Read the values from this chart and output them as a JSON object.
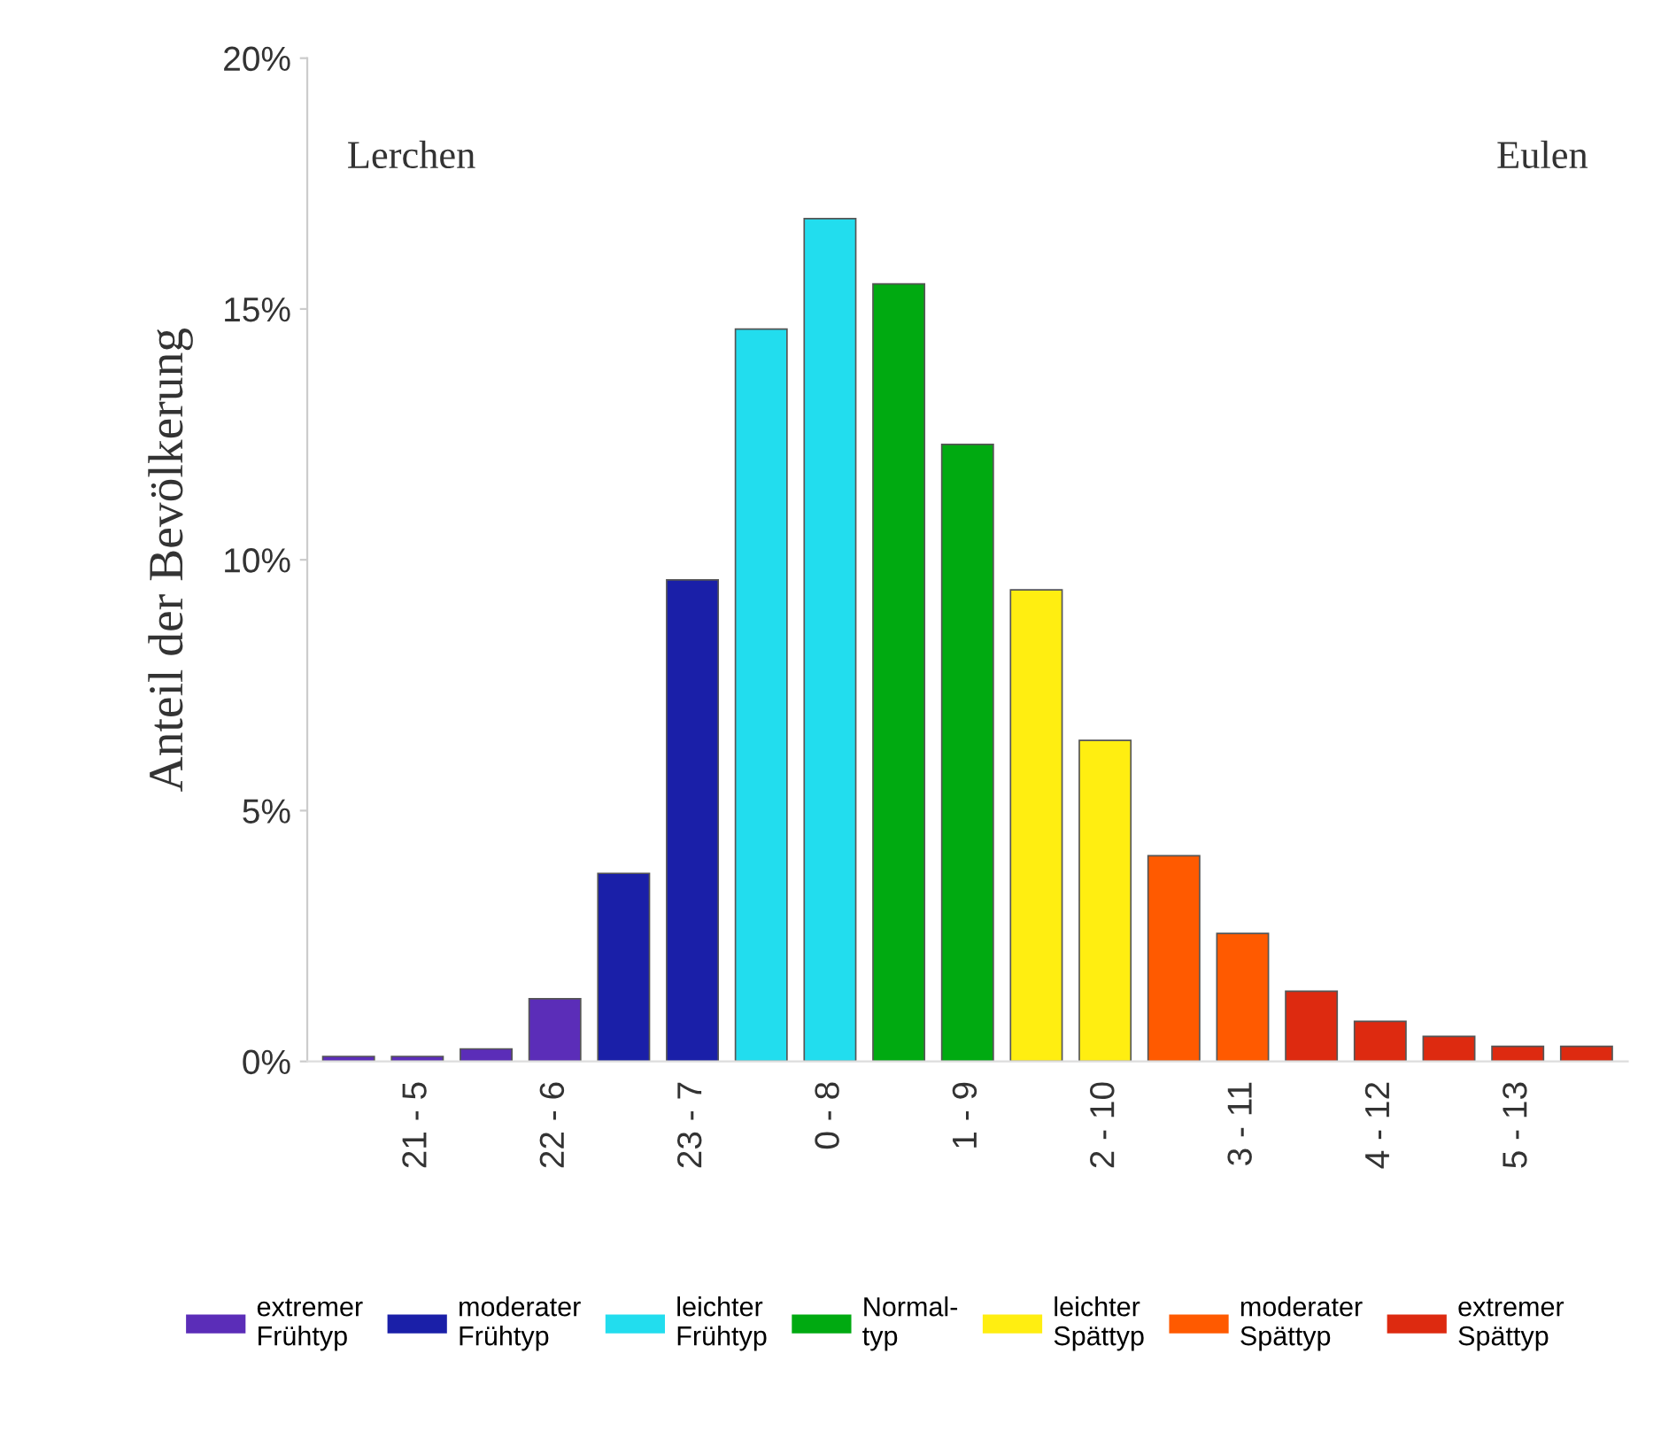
{
  "chart_data": {
    "type": "bar",
    "ylabel": "Anteil der Bevölkerung",
    "categories": [
      null,
      "21 - 5",
      null,
      "22 - 6",
      null,
      "23 - 7",
      null,
      "0 - 8",
      null,
      "1 - 9",
      null,
      "2 - 10",
      null,
      "3 - 11",
      null,
      "4 - 12",
      null,
      "5 - 13",
      null
    ],
    "series": [
      {
        "name": "extremer Frühtyp",
        "color": "#5b2db8",
        "values": [
          0.1,
          0.1,
          0.25,
          1.25,
          null,
          null,
          null,
          null,
          null,
          null,
          null,
          null,
          null,
          null,
          null,
          null,
          null,
          null,
          null
        ]
      },
      {
        "name": "moderater Frühtyp",
        "color": "#1a1fa8",
        "values": [
          null,
          null,
          null,
          null,
          3.75,
          9.6,
          null,
          null,
          null,
          null,
          null,
          null,
          null,
          null,
          null,
          null,
          null,
          null,
          null
        ]
      },
      {
        "name": "leichter Frühtyp",
        "color": "#22ddee",
        "values": [
          null,
          null,
          null,
          null,
          null,
          null,
          14.6,
          16.8,
          null,
          null,
          null,
          null,
          null,
          null,
          null,
          null,
          null,
          null,
          null
        ]
      },
      {
        "name": "Normal-typ",
        "color": "#00aa11",
        "values": [
          null,
          null,
          null,
          null,
          null,
          null,
          null,
          null,
          15.5,
          12.3,
          null,
          null,
          null,
          null,
          null,
          null,
          null,
          null,
          null
        ]
      },
      {
        "name": "leichter Spättyp",
        "color": "#ffee11",
        "values": [
          null,
          null,
          null,
          null,
          null,
          null,
          null,
          null,
          null,
          null,
          9.4,
          6.4,
          null,
          null,
          null,
          null,
          null,
          null,
          null
        ]
      },
      {
        "name": "moderater Spättyp",
        "color": "#ff5a00",
        "values": [
          null,
          null,
          null,
          null,
          null,
          null,
          null,
          null,
          null,
          null,
          null,
          null,
          4.1,
          2.55,
          null,
          null,
          null,
          null,
          null
        ]
      },
      {
        "name": "extremer Spättyp",
        "color": "#dd2a10",
        "values": [
          null,
          null,
          null,
          null,
          null,
          null,
          null,
          null,
          null,
          null,
          null,
          null,
          null,
          null,
          1.4,
          0.8,
          0.5,
          0.3,
          0.3
        ]
      }
    ],
    "ylim": [
      0,
      20
    ],
    "yticks": [
      {
        "value": 0,
        "label": "0%"
      },
      {
        "value": 5,
        "label": "5%"
      },
      {
        "value": 10,
        "label": "10%"
      },
      {
        "value": 15,
        "label": "15%"
      },
      {
        "value": 20,
        "label": "20%"
      }
    ],
    "annotations": [
      "Lerchen",
      "Eulen"
    ],
    "legend": "bottom",
    "grid": false
  }
}
